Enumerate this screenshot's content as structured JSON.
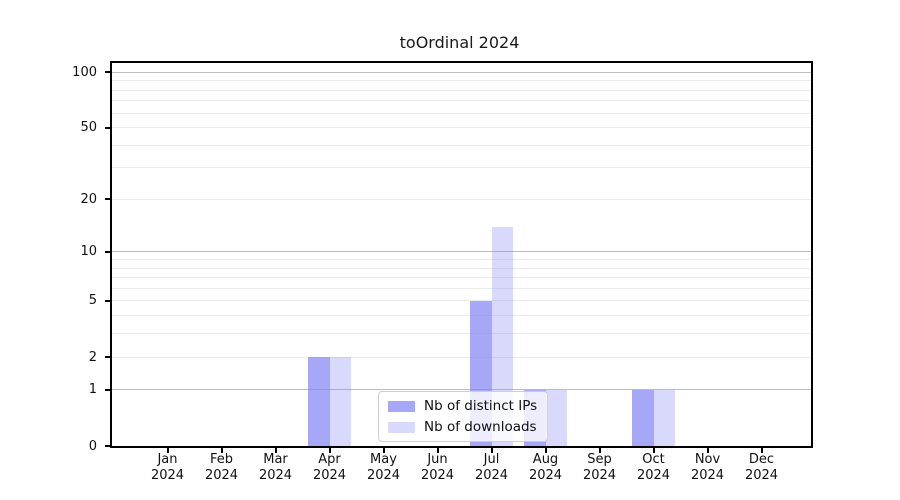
{
  "title": "toOrdinal 2024",
  "chart_data": {
    "type": "bar",
    "title": "toOrdinal 2024",
    "categories": [
      "Jan",
      "Feb",
      "Mar",
      "Apr",
      "May",
      "Jun",
      "Jul",
      "Aug",
      "Sep",
      "Oct",
      "Nov",
      "Dec"
    ],
    "category_year": "2024",
    "series": [
      {
        "name": "Nb of distinct IPs",
        "color": "rgba(130,130,245,0.7)",
        "values": [
          0,
          0,
          0,
          2,
          0,
          0,
          5,
          1,
          0,
          1,
          0,
          0
        ]
      },
      {
        "name": "Nb of downloads",
        "color": "rgba(130,130,245,0.3)",
        "values": [
          0,
          0,
          0,
          2,
          0,
          0,
          14,
          1,
          0,
          1,
          0,
          0
        ]
      }
    ],
    "y_scale": "log1p",
    "y_ticks": [
      0,
      1,
      2,
      5,
      10,
      20,
      50,
      100
    ],
    "y_minor_gridlines": [
      2,
      3,
      4,
      5,
      6,
      7,
      8,
      9,
      20,
      30,
      40,
      50,
      60,
      70,
      80,
      90
    ],
    "y_major_gridlines": [
      1,
      10,
      100
    ],
    "ylim": [
      0,
      112
    ],
    "grid": "horizontal",
    "legend_position": "lower center"
  },
  "colors": {
    "bar_base": "#8282f5",
    "grid_major": "#bdbdbd",
    "grid_minor": "#ececec",
    "axis": "#000000"
  }
}
